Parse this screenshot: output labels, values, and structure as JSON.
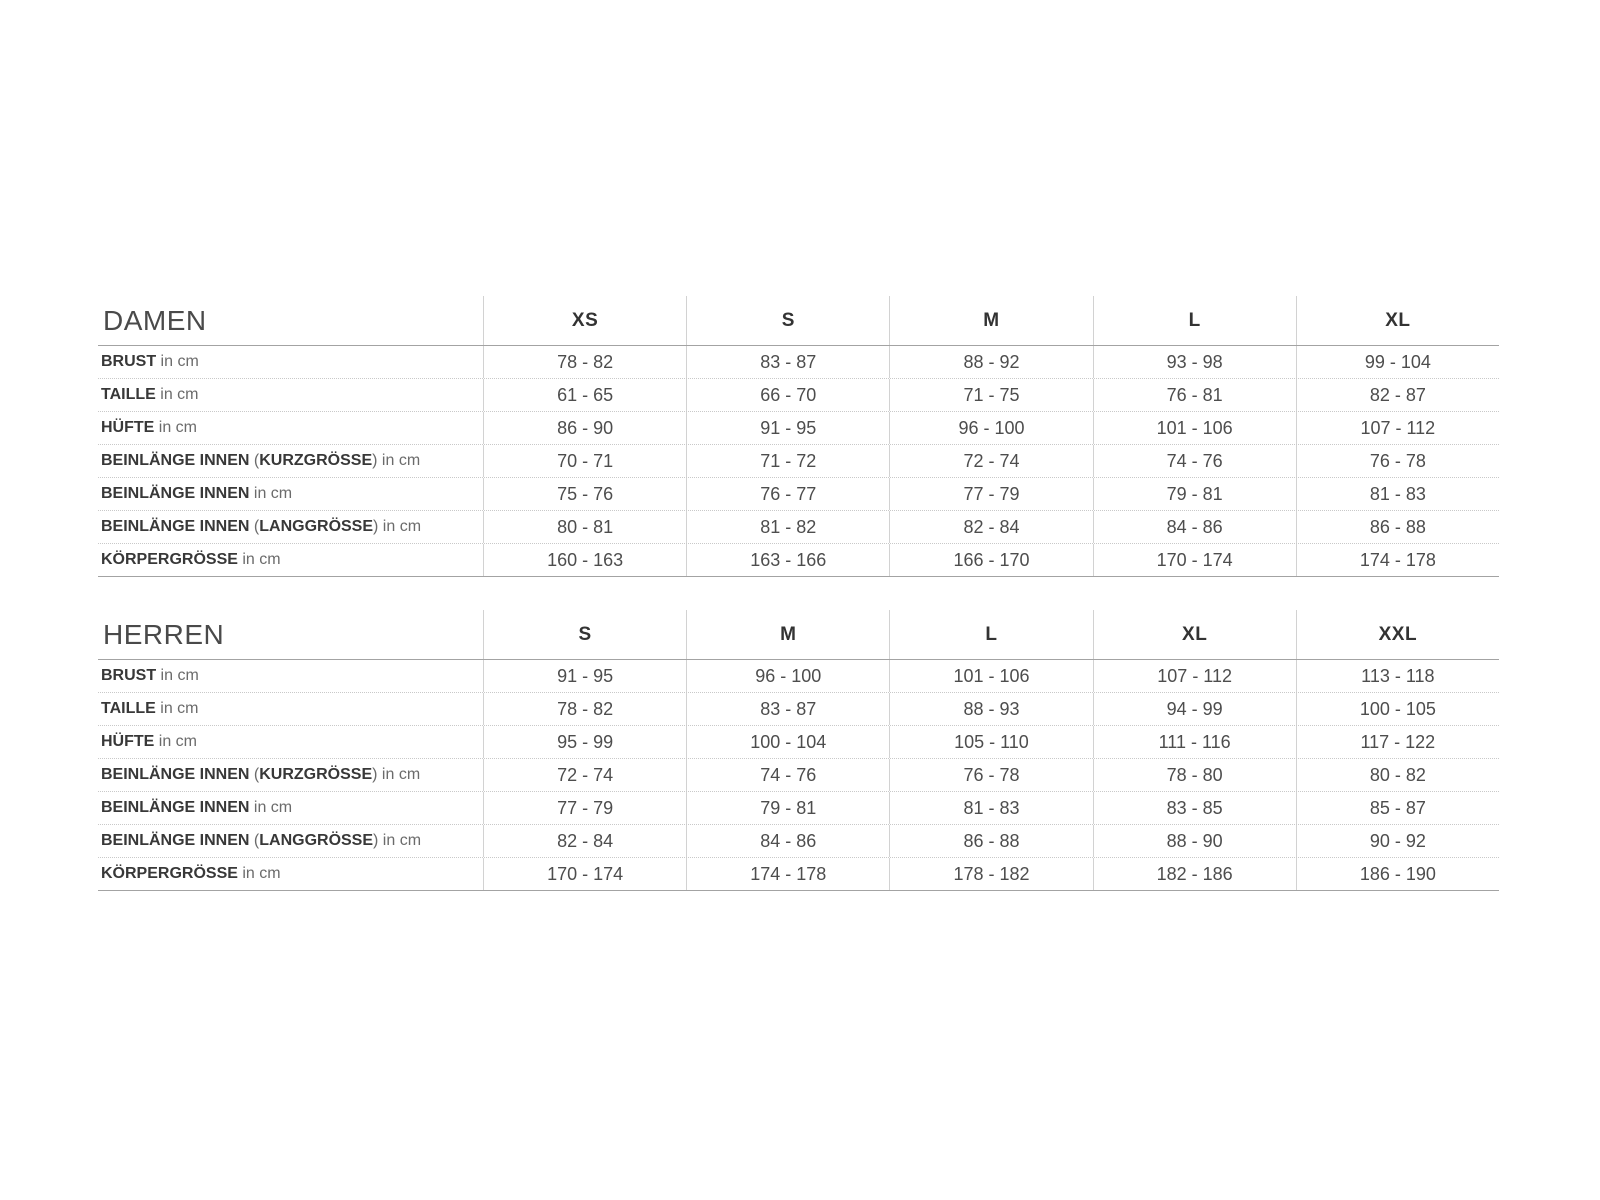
{
  "colors": {
    "background": "#ffffff",
    "rule_solid": "#a3a3a3",
    "rule_dotted": "#c9c9c9",
    "rule_vertical": "#d2d2d2",
    "title_text": "#4a4a4a",
    "header_text": "#333333",
    "value_text": "#4d4d4d",
    "label_bold_text": "#383838",
    "label_normal_text": "#6b6b6b"
  },
  "tables": [
    {
      "id": "damen",
      "title": "DAMEN",
      "sizes": [
        "XS",
        "S",
        "M",
        "L",
        "XL"
      ],
      "rows": [
        {
          "label": [
            {
              "text": "BRUST",
              "bold": true
            },
            {
              "text": " in cm",
              "bold": false
            }
          ],
          "values": [
            "78 - 82",
            "83 - 87",
            "88 - 92",
            "93 - 98",
            "99 - 104"
          ]
        },
        {
          "label": [
            {
              "text": "TAILLE",
              "bold": true
            },
            {
              "text": " in cm",
              "bold": false
            }
          ],
          "values": [
            "61 - 65",
            "66 - 70",
            "71 - 75",
            "76 - 81",
            "82 - 87"
          ]
        },
        {
          "label": [
            {
              "text": "HÜFTE",
              "bold": true
            },
            {
              "text": " in cm",
              "bold": false
            }
          ],
          "values": [
            "86 - 90",
            "91 - 95",
            "96 - 100",
            "101 - 106",
            "107 - 112"
          ]
        },
        {
          "label": [
            {
              "text": "BEINLÄNGE INNEN",
              "bold": true
            },
            {
              "text": " (",
              "bold": false
            },
            {
              "text": "KURZGRÖSSE",
              "bold": true
            },
            {
              "text": ") in cm",
              "bold": false
            }
          ],
          "values": [
            "70 - 71",
            "71 - 72",
            "72 - 74",
            "74 - 76",
            "76 - 78"
          ]
        },
        {
          "label": [
            {
              "text": "BEINLÄNGE INNEN",
              "bold": true
            },
            {
              "text": " in cm",
              "bold": false
            }
          ],
          "values": [
            "75 - 76",
            "76 - 77",
            "77 - 79",
            "79 - 81",
            "81 - 83"
          ]
        },
        {
          "label": [
            {
              "text": "BEINLÄNGE INNEN",
              "bold": true
            },
            {
              "text": " (",
              "bold": false
            },
            {
              "text": "LANGGRÖSSE",
              "bold": true
            },
            {
              "text": ") in cm",
              "bold": false
            }
          ],
          "values": [
            "80 - 81",
            "81 - 82",
            "82 - 84",
            "84 - 86",
            "86 - 88"
          ]
        },
        {
          "label": [
            {
              "text": "KÖRPERGRÖSSE",
              "bold": true
            },
            {
              "text": " in cm",
              "bold": false
            }
          ],
          "values": [
            "160 - 163",
            "163 - 166",
            "166 - 170",
            "170 - 174",
            "174 - 178"
          ]
        }
      ]
    },
    {
      "id": "herren",
      "title": "HERREN",
      "sizes": [
        "S",
        "M",
        "L",
        "XL",
        "XXL"
      ],
      "rows": [
        {
          "label": [
            {
              "text": "BRUST",
              "bold": true
            },
            {
              "text": " in cm",
              "bold": false
            }
          ],
          "values": [
            "91 - 95",
            "96 - 100",
            "101 - 106",
            "107 - 112",
            "113 - 118"
          ]
        },
        {
          "label": [
            {
              "text": "TAILLE",
              "bold": true
            },
            {
              "text": " in cm",
              "bold": false
            }
          ],
          "values": [
            "78 - 82",
            "83 - 87",
            "88 - 93",
            "94 - 99",
            "100 - 105"
          ]
        },
        {
          "label": [
            {
              "text": "HÜFTE",
              "bold": true
            },
            {
              "text": " in cm",
              "bold": false
            }
          ],
          "values": [
            "95 - 99",
            "100 - 104",
            "105 - 110",
            "111 - 116",
            "117 - 122"
          ]
        },
        {
          "label": [
            {
              "text": "BEINLÄNGE INNEN",
              "bold": true
            },
            {
              "text": " (",
              "bold": false
            },
            {
              "text": "KURZGRÖSSE",
              "bold": true
            },
            {
              "text": ") in cm",
              "bold": false
            }
          ],
          "values": [
            "72 - 74",
            "74 - 76",
            "76 - 78",
            "78 - 80",
            "80 - 82"
          ]
        },
        {
          "label": [
            {
              "text": "BEINLÄNGE INNEN",
              "bold": true
            },
            {
              "text": " in cm",
              "bold": false
            }
          ],
          "values": [
            "77 - 79",
            "79 - 81",
            "81 - 83",
            "83 - 85",
            "85 - 87"
          ]
        },
        {
          "label": [
            {
              "text": "BEINLÄNGE INNEN",
              "bold": true
            },
            {
              "text": " (",
              "bold": false
            },
            {
              "text": "LANGGRÖSSE",
              "bold": true
            },
            {
              "text": ") in cm",
              "bold": false
            }
          ],
          "values": [
            "82 - 84",
            "84 - 86",
            "86 - 88",
            "88 - 90",
            "90 - 92"
          ]
        },
        {
          "label": [
            {
              "text": "KÖRPERGRÖSSE",
              "bold": true
            },
            {
              "text": " in cm",
              "bold": false
            }
          ],
          "values": [
            "170 - 174",
            "174 - 178",
            "178 - 182",
            "182 - 186",
            "186 - 190"
          ]
        }
      ]
    }
  ]
}
